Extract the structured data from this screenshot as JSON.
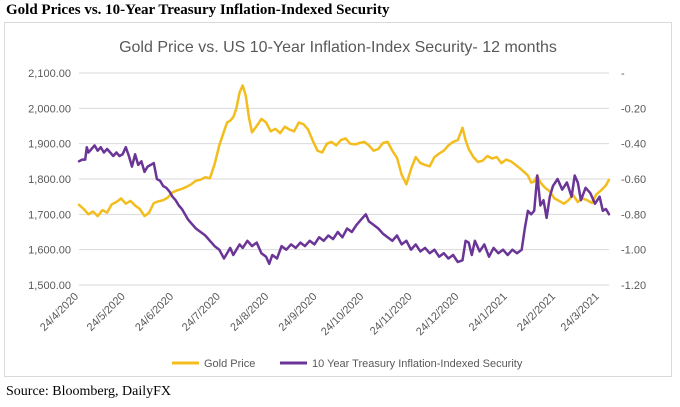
{
  "page": {
    "title": "Gold Prices vs. 10-Year Treasury Inflation-Indexed Security",
    "source": "Source: Bloomberg, DailyFX"
  },
  "colors": {
    "gold": "#f2bd1d",
    "tips": "#6a3596",
    "axis": "#595959",
    "grid": "#d9d9d9"
  },
  "chart_data": {
    "type": "line",
    "title": "Gold Price vs. US 10-Year Inflation-Index Security- 12 months",
    "xlabel": "",
    "ylabel": "",
    "y_left": {
      "min": 1500,
      "max": 2100,
      "ticks": [
        "1,500.00",
        "1,600.00",
        "1,700.00",
        "1,800.00",
        "1,900.00",
        "2,000.00",
        "2,100.00"
      ]
    },
    "y_right": {
      "min": -1.2,
      "max": 0,
      "ticks": [
        "-1.20",
        "-1.00",
        "-0.80",
        "-0.60",
        "-0.40",
        "-0.20",
        "-"
      ]
    },
    "x_range": [
      0,
      340
    ],
    "x_ticks": [
      {
        "label": "24/4/2020",
        "day": 0
      },
      {
        "label": "24/5/2020",
        "day": 30
      },
      {
        "label": "24/6/2020",
        "day": 61
      },
      {
        "label": "24/7/2020",
        "day": 91
      },
      {
        "label": "24/8/2020",
        "day": 122
      },
      {
        "label": "24/9/2020",
        "day": 153
      },
      {
        "label": "24/10/2020",
        "day": 183
      },
      {
        "label": "24/11/2020",
        "day": 214
      },
      {
        "label": "24/12/2020",
        "day": 244
      },
      {
        "label": "24/1/2021",
        "day": 275
      },
      {
        "label": "24/2/2021",
        "day": 306
      },
      {
        "label": "24/3/2021",
        "day": 334
      }
    ],
    "legend_position": "bottom",
    "series": [
      {
        "name": "Gold Price",
        "axis": "left",
        "points": [
          [
            0,
            1727
          ],
          [
            3,
            1715
          ],
          [
            6,
            1700
          ],
          [
            9,
            1708
          ],
          [
            12,
            1695
          ],
          [
            15,
            1712
          ],
          [
            18,
            1705
          ],
          [
            21,
            1728
          ],
          [
            24,
            1735
          ],
          [
            27,
            1745
          ],
          [
            30,
            1730
          ],
          [
            33,
            1738
          ],
          [
            36,
            1725
          ],
          [
            39,
            1715
          ],
          [
            42,
            1695
          ],
          [
            45,
            1705
          ],
          [
            48,
            1732
          ],
          [
            51,
            1737
          ],
          [
            54,
            1740
          ],
          [
            57,
            1748
          ],
          [
            60,
            1762
          ],
          [
            63,
            1768
          ],
          [
            66,
            1772
          ],
          [
            69,
            1778
          ],
          [
            72,
            1785
          ],
          [
            75,
            1795
          ],
          [
            78,
            1798
          ],
          [
            81,
            1805
          ],
          [
            84,
            1802
          ],
          [
            87,
            1842
          ],
          [
            90,
            1895
          ],
          [
            93,
            1935
          ],
          [
            95,
            1960
          ],
          [
            97,
            1965
          ],
          [
            99,
            1975
          ],
          [
            101,
            2000
          ],
          [
            103,
            2045
          ],
          [
            105,
            2065
          ],
          [
            107,
            2035
          ],
          [
            109,
            1975
          ],
          [
            111,
            1932
          ],
          [
            114,
            1950
          ],
          [
            117,
            1970
          ],
          [
            120,
            1960
          ],
          [
            123,
            1935
          ],
          [
            126,
            1942
          ],
          [
            129,
            1930
          ],
          [
            132,
            1948
          ],
          [
            135,
            1940
          ],
          [
            138,
            1935
          ],
          [
            141,
            1960
          ],
          [
            144,
            1955
          ],
          [
            147,
            1940
          ],
          [
            150,
            1908
          ],
          [
            153,
            1880
          ],
          [
            156,
            1875
          ],
          [
            159,
            1900
          ],
          [
            162,
            1905
          ],
          [
            165,
            1895
          ],
          [
            168,
            1910
          ],
          [
            171,
            1915
          ],
          [
            174,
            1900
          ],
          [
            177,
            1898
          ],
          [
            180,
            1902
          ],
          [
            183,
            1905
          ],
          [
            186,
            1895
          ],
          [
            189,
            1880
          ],
          [
            192,
            1885
          ],
          [
            195,
            1902
          ],
          [
            198,
            1905
          ],
          [
            201,
            1880
          ],
          [
            204,
            1860
          ],
          [
            207,
            1812
          ],
          [
            210,
            1785
          ],
          [
            213,
            1828
          ],
          [
            216,
            1862
          ],
          [
            219,
            1845
          ],
          [
            222,
            1840
          ],
          [
            225,
            1836
          ],
          [
            228,
            1862
          ],
          [
            231,
            1872
          ],
          [
            234,
            1880
          ],
          [
            237,
            1895
          ],
          [
            240,
            1905
          ],
          [
            243,
            1910
          ],
          [
            246,
            1945
          ],
          [
            248,
            1910
          ],
          [
            250,
            1885
          ],
          [
            253,
            1862
          ],
          [
            256,
            1848
          ],
          [
            259,
            1852
          ],
          [
            262,
            1865
          ],
          [
            265,
            1858
          ],
          [
            268,
            1862
          ],
          [
            271,
            1845
          ],
          [
            274,
            1855
          ],
          [
            277,
            1850
          ],
          [
            280,
            1840
          ],
          [
            283,
            1830
          ],
          [
            286,
            1818
          ],
          [
            288,
            1810
          ],
          [
            290,
            1790
          ],
          [
            292,
            1793
          ],
          [
            294,
            1810
          ],
          [
            296,
            1790
          ],
          [
            299,
            1775
          ],
          [
            302,
            1765
          ],
          [
            305,
            1745
          ],
          [
            308,
            1738
          ],
          [
            311,
            1730
          ],
          [
            314,
            1740
          ],
          [
            317,
            1755
          ],
          [
            320,
            1735
          ],
          [
            323,
            1745
          ],
          [
            326,
            1740
          ],
          [
            329,
            1732
          ],
          [
            332,
            1757
          ],
          [
            335,
            1768
          ],
          [
            338,
            1782
          ],
          [
            340,
            1798
          ]
        ]
      },
      {
        "name": "10 Year Treasury Inflation-Indexed Security",
        "axis": "right",
        "points": [
          [
            0,
            -0.5
          ],
          [
            2,
            -0.49
          ],
          [
            4,
            -0.49
          ],
          [
            5,
            -0.42
          ],
          [
            6,
            -0.45
          ],
          [
            8,
            -0.43
          ],
          [
            10,
            -0.41
          ],
          [
            12,
            -0.44
          ],
          [
            14,
            -0.42
          ],
          [
            16,
            -0.45
          ],
          [
            18,
            -0.43
          ],
          [
            20,
            -0.45
          ],
          [
            22,
            -0.47
          ],
          [
            24,
            -0.45
          ],
          [
            26,
            -0.47
          ],
          [
            28,
            -0.46
          ],
          [
            30,
            -0.42
          ],
          [
            32,
            -0.47
          ],
          [
            34,
            -0.53
          ],
          [
            36,
            -0.46
          ],
          [
            38,
            -0.52
          ],
          [
            40,
            -0.5
          ],
          [
            42,
            -0.56
          ],
          [
            44,
            -0.53
          ],
          [
            46,
            -0.52
          ],
          [
            48,
            -0.51
          ],
          [
            50,
            -0.6
          ],
          [
            52,
            -0.61
          ],
          [
            54,
            -0.64
          ],
          [
            56,
            -0.65
          ],
          [
            58,
            -0.67
          ],
          [
            60,
            -0.7
          ],
          [
            62,
            -0.72
          ],
          [
            64,
            -0.75
          ],
          [
            66,
            -0.77
          ],
          [
            68,
            -0.8
          ],
          [
            70,
            -0.83
          ],
          [
            72,
            -0.85
          ],
          [
            75,
            -0.88
          ],
          [
            78,
            -0.9
          ],
          [
            81,
            -0.92
          ],
          [
            84,
            -0.95
          ],
          [
            87,
            -0.98
          ],
          [
            90,
            -1.0
          ],
          [
            93,
            -1.05
          ],
          [
            95,
            -1.02
          ],
          [
            97,
            -0.99
          ],
          [
            99,
            -1.03
          ],
          [
            101,
            -1.0
          ],
          [
            103,
            -0.97
          ],
          [
            105,
            -0.99
          ],
          [
            108,
            -0.95
          ],
          [
            111,
            -0.98
          ],
          [
            114,
            -0.96
          ],
          [
            117,
            -1.02
          ],
          [
            120,
            -1.04
          ],
          [
            122,
            -1.08
          ],
          [
            124,
            -1.03
          ],
          [
            127,
            -1.05
          ],
          [
            130,
            -0.98
          ],
          [
            133,
            -1.0
          ],
          [
            136,
            -0.97
          ],
          [
            139,
            -0.99
          ],
          [
            142,
            -0.96
          ],
          [
            145,
            -0.98
          ],
          [
            148,
            -0.95
          ],
          [
            151,
            -0.97
          ],
          [
            154,
            -0.93
          ],
          [
            157,
            -0.95
          ],
          [
            160,
            -0.92
          ],
          [
            163,
            -0.94
          ],
          [
            166,
            -0.9
          ],
          [
            169,
            -0.93
          ],
          [
            172,
            -0.88
          ],
          [
            175,
            -0.9
          ],
          [
            178,
            -0.86
          ],
          [
            181,
            -0.83
          ],
          [
            184,
            -0.8
          ],
          [
            186,
            -0.84
          ],
          [
            189,
            -0.86
          ],
          [
            192,
            -0.88
          ],
          [
            195,
            -0.91
          ],
          [
            198,
            -0.93
          ],
          [
            201,
            -0.95
          ],
          [
            204,
            -0.92
          ],
          [
            207,
            -0.97
          ],
          [
            210,
            -0.95
          ],
          [
            213,
            -1.0
          ],
          [
            216,
            -0.97
          ],
          [
            219,
            -1.01
          ],
          [
            222,
            -0.99
          ],
          [
            225,
            -1.02
          ],
          [
            228,
            -1.0
          ],
          [
            231,
            -1.04
          ],
          [
            234,
            -1.02
          ],
          [
            237,
            -1.05
          ],
          [
            240,
            -1.03
          ],
          [
            243,
            -1.07
          ],
          [
            246,
            -1.06
          ],
          [
            248,
            -0.95
          ],
          [
            250,
            -0.96
          ],
          [
            252,
            -1.03
          ],
          [
            254,
            -0.95
          ],
          [
            257,
            -1.01
          ],
          [
            260,
            -0.97
          ],
          [
            263,
            -1.04
          ],
          [
            266,
            -0.99
          ],
          [
            269,
            -1.02
          ],
          [
            272,
            -1.0
          ],
          [
            275,
            -1.03
          ],
          [
            278,
            -1.0
          ],
          [
            281,
            -1.02
          ],
          [
            284,
            -1.0
          ],
          [
            286,
            -0.88
          ],
          [
            288,
            -0.78
          ],
          [
            290,
            -0.8
          ],
          [
            292,
            -0.78
          ],
          [
            294,
            -0.58
          ],
          [
            296,
            -0.75
          ],
          [
            298,
            -0.72
          ],
          [
            300,
            -0.82
          ],
          [
            302,
            -0.7
          ],
          [
            304,
            -0.64
          ],
          [
            307,
            -0.6
          ],
          [
            310,
            -0.66
          ],
          [
            313,
            -0.62
          ],
          [
            316,
            -0.7
          ],
          [
            318,
            -0.58
          ],
          [
            320,
            -0.62
          ],
          [
            322,
            -0.72
          ],
          [
            325,
            -0.65
          ],
          [
            328,
            -0.68
          ],
          [
            331,
            -0.74
          ],
          [
            334,
            -0.7
          ],
          [
            336,
            -0.78
          ],
          [
            338,
            -0.77
          ],
          [
            340,
            -0.8
          ]
        ]
      }
    ]
  }
}
